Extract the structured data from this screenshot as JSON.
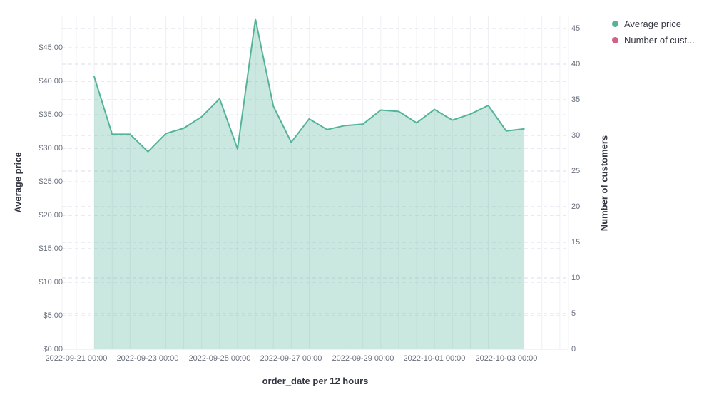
{
  "legend": {
    "items": [
      {
        "label": "Average price",
        "color": "#54b399"
      },
      {
        "label": "Number of cust...",
        "color": "#d36086"
      }
    ]
  },
  "chart_data": {
    "type": "area",
    "title": "",
    "x_axis": {
      "label": "order_date per 12 hours",
      "interval": "12 hours"
    },
    "left_axis": {
      "label": "Average price",
      "tick_values": [
        0,
        5,
        10,
        15,
        20,
        25,
        30,
        35,
        40,
        45
      ],
      "tick_labels": [
        "$0.00",
        "$5.00",
        "$10.00",
        "$15.00",
        "$20.00",
        "$25.00",
        "$30.00",
        "$35.00",
        "$40.00",
        "$45.00"
      ],
      "range": [
        0,
        49.7
      ]
    },
    "right_axis": {
      "label": "Number of customers",
      "tick_values": [
        0,
        5,
        10,
        15,
        20,
        25,
        30,
        35,
        40,
        45
      ],
      "tick_labels": [
        "0",
        "5",
        "10",
        "15",
        "20",
        "25",
        "30",
        "35",
        "40",
        "45"
      ],
      "range": [
        0,
        46.7
      ]
    },
    "x_tick_labels": [
      "2022-09-21 00:00",
      "2022-09-23 00:00",
      "2022-09-25 00:00",
      "2022-09-27 00:00",
      "2022-09-29 00:00",
      "2022-10-01 00:00",
      "2022-10-03 00:00"
    ],
    "x": [
      "2022-09-21 12:00",
      "2022-09-22 00:00",
      "2022-09-22 12:00",
      "2022-09-23 00:00",
      "2022-09-23 12:00",
      "2022-09-24 00:00",
      "2022-09-24 12:00",
      "2022-09-25 00:00",
      "2022-09-25 12:00",
      "2022-09-26 00:00",
      "2022-09-26 12:00",
      "2022-09-27 00:00",
      "2022-09-27 12:00",
      "2022-09-28 00:00",
      "2022-09-28 12:00",
      "2022-09-29 00:00",
      "2022-09-29 12:00",
      "2022-09-30 00:00",
      "2022-09-30 12:00",
      "2022-10-01 00:00",
      "2022-10-01 12:00",
      "2022-10-02 00:00",
      "2022-10-02 12:00",
      "2022-10-03 00:00",
      "2022-10-03 12:00"
    ],
    "series": [
      {
        "name": "Average price",
        "axis": "left",
        "color": "#54b399",
        "fill_opacity": 0.3,
        "values": [
          40.7,
          32.1,
          32.1,
          29.5,
          32.2,
          33.0,
          34.7,
          37.4,
          29.9,
          49.3,
          36.3,
          30.9,
          34.4,
          32.8,
          33.4,
          33.6,
          35.7,
          35.5,
          33.8,
          35.8,
          34.2,
          35.1,
          36.4,
          32.6,
          32.9
        ]
      },
      {
        "name": "Number of customers",
        "axis": "right",
        "color": "#d36086",
        "values": []
      }
    ],
    "grid": true,
    "legend_position": "top-right",
    "colors": {
      "vertical_gridline": "#eef0f3",
      "horizontal_gridline": "#d9dee7",
      "axis_line": "#e0e4ea",
      "tick_text": "#69707d",
      "title_text": "#343741"
    }
  }
}
